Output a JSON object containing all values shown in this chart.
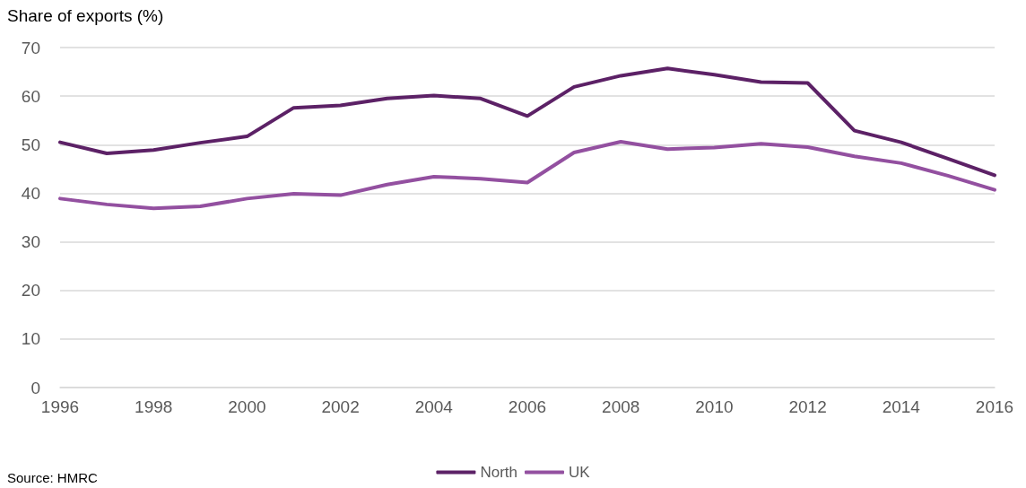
{
  "chart_data": {
    "type": "line",
    "ylabel": "Share of exports (%)",
    "x": [
      1996,
      1997,
      1998,
      1999,
      2000,
      2001,
      2002,
      2003,
      2004,
      2005,
      2006,
      2007,
      2008,
      2009,
      2010,
      2011,
      2012,
      2013,
      2014,
      2015,
      2016
    ],
    "series": [
      {
        "name": "North",
        "color": "#5c2166",
        "values": [
          50.5,
          48.2,
          48.9,
          50.4,
          51.7,
          57.6,
          58.1,
          59.5,
          60.1,
          59.5,
          55.9,
          61.9,
          64.2,
          65.7,
          64.4,
          62.9,
          62.7,
          52.9,
          50.5,
          47.1,
          43.7
        ]
      },
      {
        "name": "UK",
        "color": "#9350a0",
        "values": [
          38.9,
          37.7,
          36.9,
          37.3,
          38.9,
          39.9,
          39.6,
          41.8,
          43.4,
          43.0,
          42.2,
          48.4,
          50.6,
          49.1,
          49.4,
          50.2,
          49.5,
          47.6,
          46.2,
          43.6,
          40.7
        ]
      }
    ],
    "xlim": [
      1996,
      2016
    ],
    "xticks": [
      1996,
      1998,
      2000,
      2002,
      2004,
      2006,
      2008,
      2010,
      2012,
      2014,
      2016
    ],
    "ylim": [
      0,
      70
    ],
    "yticks": [
      0,
      10,
      20,
      30,
      40,
      50,
      60,
      70
    ],
    "grid": "y",
    "legend": "bottom",
    "marker": "none",
    "line_style": "solid",
    "annotations": [
      "Source: HMRC"
    ]
  }
}
